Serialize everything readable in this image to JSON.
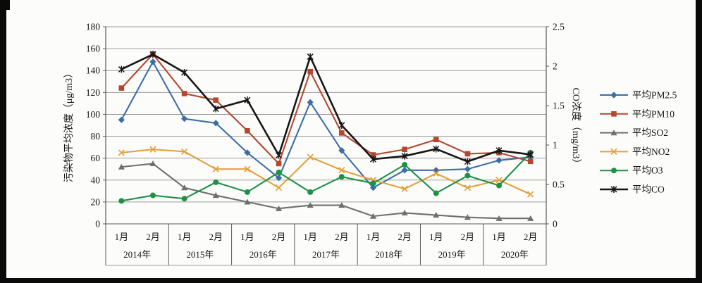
{
  "chart_data": {
    "type": "line",
    "title": "",
    "grid": true,
    "legend_position": "right",
    "x_structure": {
      "years": [
        "2014年",
        "2015年",
        "2016年",
        "2017年",
        "2018年",
        "2019年",
        "2020年"
      ],
      "months_per_year": [
        "1月",
        "2月"
      ]
    },
    "left_axis": {
      "title": "污染物平均浓度（μg/m3）",
      "min": 0,
      "max": 180,
      "step": 20,
      "tick_labels": [
        "0",
        "20",
        "40",
        "60",
        "80",
        "100",
        "120",
        "140",
        "160",
        "180"
      ]
    },
    "right_axis": {
      "title": "CO浓度（mg/m3）",
      "min": 0,
      "max": 2.5,
      "step": 0.5,
      "tick_labels": [
        "0",
        "0.5",
        "1",
        "1.5",
        "2",
        "2.5"
      ]
    },
    "series": [
      {
        "id": "pm25",
        "name": "平均PM2.5",
        "axis": "left",
        "marker": "diamond",
        "color": "#3b6ea5",
        "values": [
          95,
          148,
          96,
          92,
          65,
          42,
          111,
          67,
          33,
          49,
          49,
          50,
          58,
          61
        ]
      },
      {
        "id": "pm10",
        "name": "平均PM10",
        "axis": "left",
        "marker": "square",
        "color": "#b5472f",
        "values": [
          124,
          155,
          119,
          113,
          85,
          55,
          139,
          83,
          63,
          68,
          77,
          64,
          65,
          57
        ]
      },
      {
        "id": "so2",
        "name": "平均SO2",
        "axis": "left",
        "marker": "triangle",
        "color": "#6f6f6f",
        "values": [
          52,
          55,
          33,
          26,
          20,
          14,
          17,
          17,
          7,
          10,
          8,
          6,
          5,
          5
        ]
      },
      {
        "id": "no2",
        "name": "平均NO2",
        "axis": "left",
        "marker": "x",
        "color": "#e3a13e",
        "values": [
          65,
          68,
          66,
          50,
          50,
          33,
          61,
          49,
          40,
          32,
          46,
          33,
          40,
          27
        ]
      },
      {
        "id": "o3",
        "name": "平均O3",
        "axis": "left",
        "marker": "circle",
        "color": "#1e9145",
        "values": [
          21,
          26,
          23,
          38,
          29,
          47,
          29,
          43,
          37,
          54,
          28,
          44,
          35,
          65
        ]
      },
      {
        "id": "co",
        "name": "平均CO",
        "axis": "right",
        "marker": "star",
        "color": "#161616",
        "values": [
          1.96,
          2.15,
          1.92,
          1.46,
          1.57,
          0.87,
          2.12,
          1.25,
          0.82,
          0.86,
          0.95,
          0.79,
          0.93,
          0.88
        ]
      }
    ],
    "style": {
      "grid_color": "#9b9b9b",
      "axis_color": "#5a5a5a",
      "text_color": "#161616"
    }
  }
}
